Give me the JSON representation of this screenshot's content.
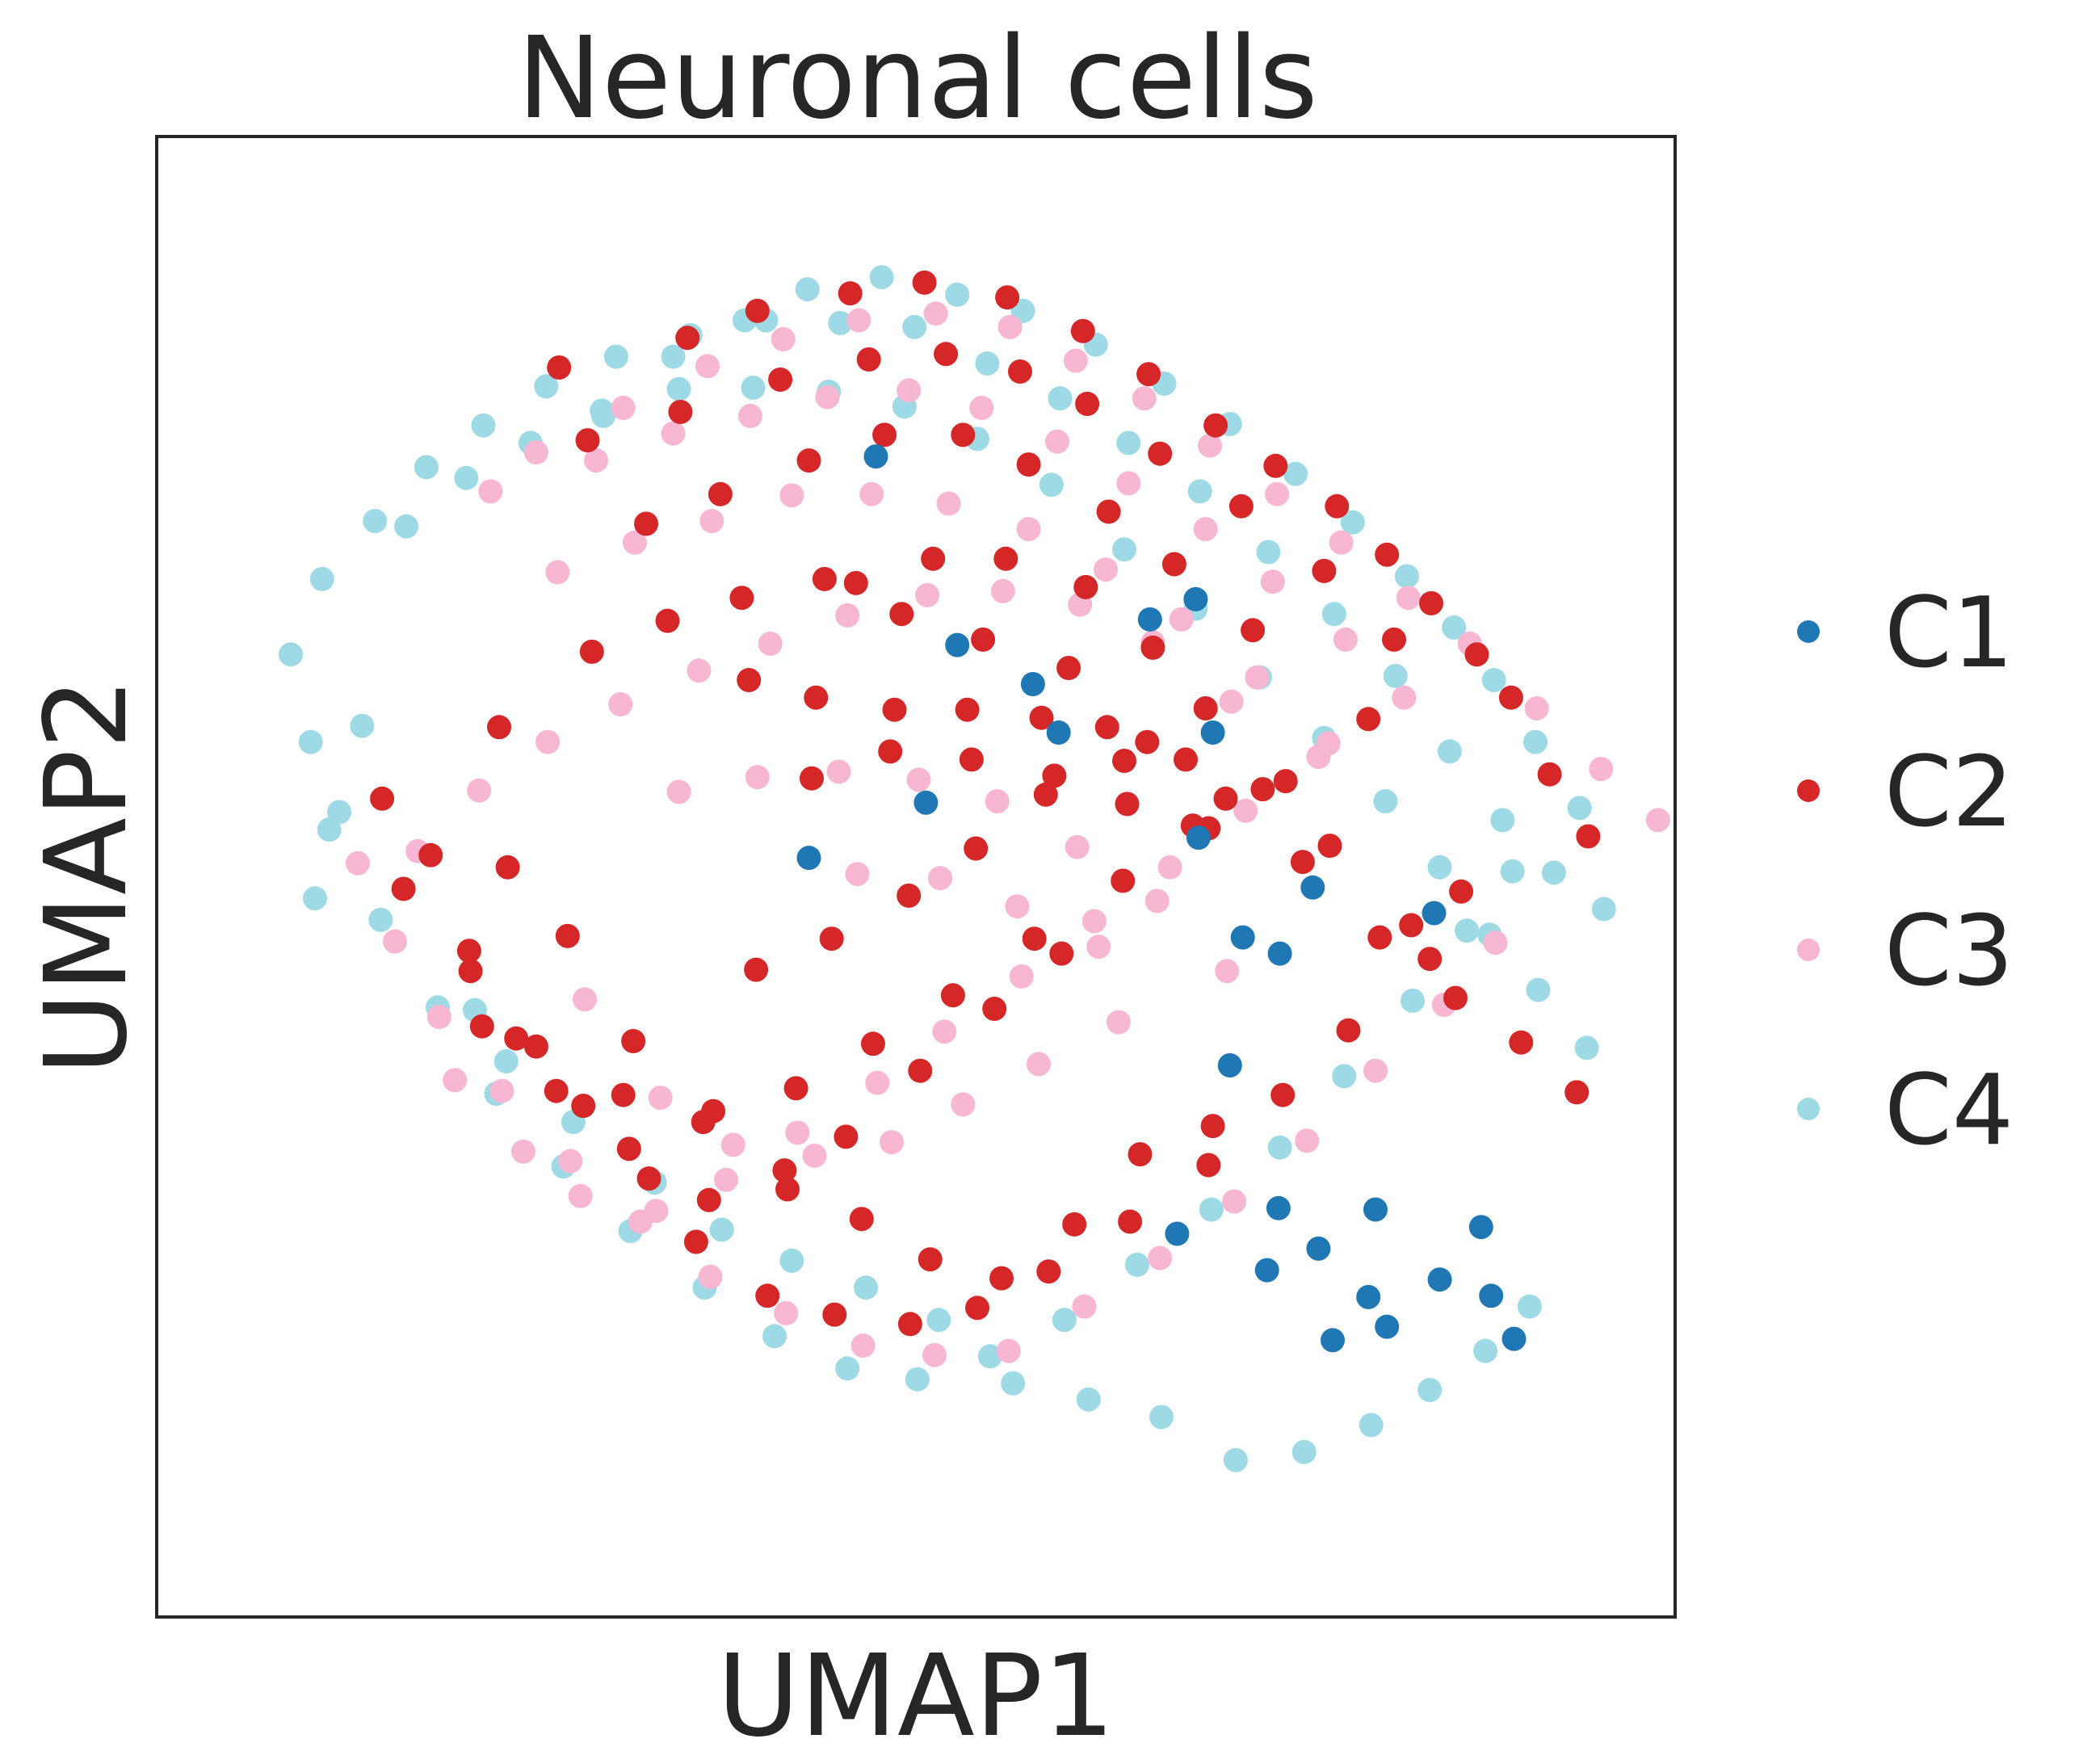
{
  "chart_data": {
    "type": "scatter",
    "title": "Neuronal cells",
    "xlabel": "UMAP1",
    "ylabel": "UMAP2",
    "xlim": [
      0,
      100
    ],
    "ylim": [
      0,
      100
    ],
    "grid": false,
    "ticks": false,
    "legend_placement": "right",
    "series": [
      {
        "name": "C1",
        "color": "#1f77b4",
        "x": [
          47.2,
          69.6,
          66.4,
          52.9,
          42.5,
          58.2,
          50.7,
          70.8,
          77.8,
          69.8,
          86.7,
          75.5,
          72.0,
          82.2,
          90.3,
          91.9,
          89.6,
          83.0,
          81.7,
          75.4,
          78.2,
          79.2,
          74.6,
          86.3,
          68.3,
          72.9,
          60.0
        ],
        "y": [
          81.2,
          70.6,
          69.1,
          67.2,
          51.4,
          64.3,
          55.5,
          60.7,
          49.2,
          52.9,
          20.1,
          44.3,
          36.0,
          25.3,
          18.9,
          15.7,
          24.0,
          16.6,
          18.8,
          25.4,
          22.4,
          15.6,
          20.8,
          47.3,
          23.5,
          45.5,
          60.7
        ]
      },
      {
        "name": "C2",
        "color": "#d62728",
        "x": [
          25.0,
          34.0,
          38.9,
          45.4,
          50.6,
          56.4,
          61.7,
          66.3,
          71.0,
          75.2,
          79.5,
          83.0,
          86.1,
          89.3,
          91.7,
          94.4,
          97.1,
          88.2,
          86.0,
          80.3,
          75.7,
          70.5,
          65.0,
          59.3,
          54.3,
          49.6,
          44.3,
          39.6,
          34.6,
          31.3,
          26.7,
          22.0,
          18.7,
          14.1,
          12.6,
          27.0,
          33.5,
          40.5,
          46.7,
          52.1,
          57.3,
          62.0,
          67.1,
          72.8,
          78.6,
          83.5,
          81.7,
          75.9,
          70.5,
          64.5,
          58.3,
          52.6,
          47.0,
          41.6,
          35.8,
          29.5,
          23.4,
          18.8,
          31.1,
          36.3,
          42.5,
          47.8,
          53.3,
          57.9,
          63.5,
          68.1,
          73.6,
          70.3,
          64.6,
          59.1,
          54.2,
          49.5,
          44.1,
          38.8,
          45.8,
          51.2,
          56.3,
          61.9,
          66.6,
          38.3,
          43.0,
          48.5,
          53.6,
          58.8,
          63.4,
          68.9,
          74.3,
          79.0,
          84.7,
          60.2,
          55.5,
          50.3,
          45.1,
          41.0,
          35.5,
          29.9,
          24.8,
          19.6,
          16.0,
          20.8,
          27.3,
          32.6,
          37.8,
          43.6,
          49.0,
          54.7,
          60.7,
          66.2,
          71.7,
          77.1,
          82.5,
          87.8,
          92.4,
          96.3,
          70.8,
          65.7,
          61.1,
          56.0,
          51.0,
          46.2,
          40.8,
          35.1,
          30.2,
          25.6,
          21.4,
          42.7,
          48.2,
          53.9,
          59.7,
          64.8,
          69.4
        ],
        "y": [
          87.8,
          90.0,
          92.0,
          93.3,
          94.1,
          93.0,
          90.5,
          87.3,
          83.5,
          80.5,
          77.5,
          73.9,
          70.3,
          66.5,
          63.3,
          57.6,
          53.0,
          48.9,
          43.9,
          38.6,
          33.8,
          28.6,
          24.4,
          20.7,
          18.0,
          16.8,
          17.5,
          18.9,
          22.9,
          27.6,
          33.0,
          38.0,
          44.5,
          49.1,
          55.8,
          82.4,
          84.5,
          86.9,
          88.4,
          88.8,
          87.5,
          85.1,
          81.4,
          77.5,
          72.7,
          67.6,
          61.7,
          57.1,
          53.6,
          49.7,
          45.4,
          41.2,
          37.6,
          34.3,
          32.6,
          33.8,
          37.4,
          43.0,
          76.2,
          78.4,
          80.9,
          82.8,
          82.8,
          80.6,
          77.1,
          73.2,
          68.3,
          62.5,
          58.6,
          56.1,
          52.1,
          48.6,
          45.4,
          43.1,
          71.8,
          73.6,
          73.6,
          71.5,
          67.0,
          64.6,
          63.3,
          62.4,
          62.4,
          61.8,
          61.1,
          58.7,
          56.5,
          52.3,
          46.4,
          44.3,
          40.2,
          35.6,
          30.7,
          26.8,
          26.0,
          29.8,
          34.1,
          38.9,
          51.6,
          61.1,
          66.7,
          69.0,
          70.7,
          72.1,
          69.5,
          67.6,
          65.5,
          60.0,
          55.8,
          51.1,
          45.5,
          41.0,
          37.7,
          34.0,
          31.5,
          29.4,
          24.2,
          20.2,
          21.6,
          24.6,
          28.2,
          31.8,
          37.8,
          45.6,
          50.7,
          57.3,
          59.3,
          58.7,
          57.5,
          55.4,
          53.8
        ]
      },
      {
        "name": "C3",
        "color": "#f7b6d2",
        "x": [
          23.4,
          29.5,
          35.4,
          40.7,
          46.0,
          51.4,
          56.6,
          61.2,
          66.0,
          70.6,
          75.3,
          79.8,
          84.5,
          88.8,
          93.5,
          98.0,
          102.0,
          90.6,
          87.0,
          82.2,
          77.4,
          72.3,
          67.1,
          61.8,
          56.5,
          51.3,
          46.3,
          40.9,
          35.6,
          30.7,
          25.8,
          21.0,
          16.6,
          13.5,
          10.9,
          20.2,
          27.6,
          33.0,
          38.4,
          43.8,
          49.5,
          54.6,
          59.9,
          64.9,
          70.3,
          75.0,
          80.1,
          84.2,
          78.2,
          73.1,
          67.8,
          62.5,
          57.4,
          52.0,
          47.3,
          41.7,
          36.7,
          31.8,
          26.5,
          22.5,
          17.7,
          24.9,
          30.3,
          35.7,
          41.3,
          46.9,
          52.3,
          57.9,
          63.3,
          68.6,
          73.9,
          78.9,
          72.1,
          66.6,
          61.5,
          56.1,
          50.8,
          45.2,
          39.8,
          34.8,
          29.3,
          24.2,
          19.4,
          15.1,
          33.4,
          38.9,
          44.6,
          50.2,
          55.7,
          61.3,
          66.9,
          71.8,
          64.2,
          58.6,
          53.3,
          48.3,
          42.9,
          37.2,
          32.1,
          26.8,
          45.9,
          51.7,
          57.1,
          62.8
        ],
        "y": [
          81.5,
          84.8,
          87.9,
          89.9,
          91.3,
          91.8,
          90.8,
          88.3,
          85.5,
          82.0,
          78.4,
          74.8,
          70.7,
          67.3,
          62.5,
          58.0,
          54.2,
          45.1,
          40.5,
          35.6,
          30.4,
          25.9,
          21.7,
          18.1,
          14.8,
          14.5,
          15.2,
          17.6,
          20.3,
          24.4,
          28.9,
          34.1,
          39.6,
          45.2,
          51.0,
          78.6,
          80.9,
          82.9,
          84.2,
          85.6,
          86.1,
          84.8,
          82.3,
          79.2,
          75.8,
          71.9,
          67.6,
          63.3,
          58.9,
          54.9,
          50.7,
          46.7,
          42.6,
          38.5,
          34.7,
          31.0,
          27.5,
          25.2,
          26.3,
          29.6,
          34.9,
          72.6,
          74.8,
          76.4,
          78.3,
          78.4,
          77.7,
          75.8,
          72.8,
          69.1,
          64.8,
          59.9,
          63.0,
          67.4,
          70.2,
          71.2,
          70.9,
          69.4,
          67.3,
          65.3,
          62.8,
          60.0,
          56.4,
          51.9,
          56.3,
          57.4,
          57.8,
          57.2,
          55.6,
          52.2,
          48.2,
          43.0,
          39.2,
          36.1,
          33.1,
          30.3,
          29.3,
          30.1,
          33.6,
          40.9,
          50.2,
          49.9,
          47.8,
          44.8
        ]
      },
      {
        "name": "C4",
        "color": "#9edae5",
        "x": [
          28.0,
          33.0,
          38.0,
          42.4,
          47.6,
          52.9,
          57.5,
          62.6,
          67.4,
          72.0,
          76.6,
          80.6,
          84.4,
          87.7,
          90.5,
          93.4,
          96.5,
          91.8,
          88.6,
          84.8,
          80.0,
          75.5,
          70.7,
          65.5,
          60.4,
          55.2,
          50.1,
          45.2,
          40.1,
          35.2,
          30.0,
          25.3,
          20.6,
          16.5,
          12.5,
          8.9,
          7.6,
          6.2,
          8.4,
          12.1,
          15.7,
          19.7,
          24.1,
          29.0,
          34.2,
          39.5,
          44.7,
          49.9,
          55.0,
          60.1,
          64.9,
          69.9,
          74.7,
          79.3,
          83.6,
          87.4,
          91.1,
          94.7,
          98.2,
          14.3,
          18.5,
          23.0,
          28.1,
          33.4,
          38.6,
          43.9,
          49.2,
          54.3,
          59.5,
          64.6,
          69.6,
          74.1,
          78.6,
          82.9,
          86.7,
          90.2,
          93.6,
          97.0,
          11.2,
          9.6,
          7.9,
          19.1,
          21.3,
          26.0,
          31.7,
          36.4,
          41.3,
          46.5,
          51.6,
          56.8,
          62.1,
          67.2,
          72.4,
          77.2,
          81.9,
          86.0,
          89.9,
          93.0
        ],
        "y": [
          84.6,
          88.6,
          91.3,
          93.6,
          94.5,
          93.2,
          92.0,
          89.5,
          86.6,
          83.6,
          79.9,
          76.3,
          72.3,
          68.5,
          64.6,
          60.0,
          55.1,
          50.4,
          46.0,
          40.8,
          35.2,
          29.9,
          25.3,
          21.2,
          17.1,
          14.4,
          12.7,
          13.5,
          15.9,
          19.5,
          23.7,
          28.5,
          33.9,
          40.3,
          46.8,
          53.5,
          60.0,
          66.5,
          72.1,
          76.4,
          80.4,
          83.5,
          86.4,
          88.6,
          90.2,
          91.3,
          91.1,
          90.8,
          88.1,
          85.5,
          82.2,
          78.6,
          74.1,
          69.5,
          64.9,
          59.3,
          54.2,
          50.3,
          47.6,
          76.0,
          79.6,
          82.2,
          84.2,
          86.2,
          86.3,
          86.0,
          84.9,
          82.5,
          79.1,
          74.3,
          69.9,
          64.8,
          60.3,
          55.6,
          50.7,
          45.7,
          41.6,
          37.3,
          61.2,
          54.8,
          48.4,
          40.1,
          36.3,
          31.8,
          27.3,
          23.8,
          21.5,
          19.5,
          17.1,
          12.4,
          11.2,
          9.9,
          6.7,
          7.3,
          9.3,
          11.9,
          14.8,
          18.1
        ]
      }
    ]
  }
}
